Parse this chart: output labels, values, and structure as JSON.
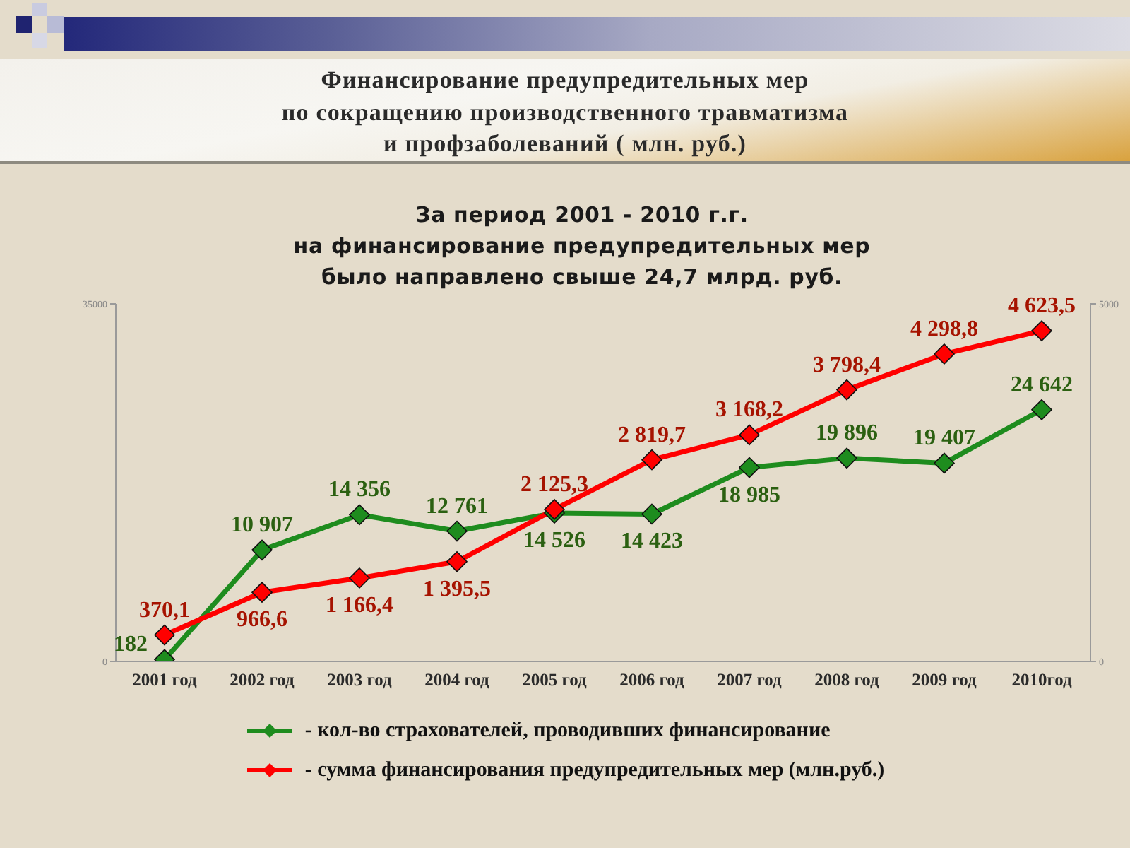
{
  "chart_data": {
    "type": "line",
    "title": "Финансирование предупредительных мер\nпо сокращению производственного травматизма\nи профзаболеваний ( млн. руб.)",
    "subtitle": "За период 2001 - 2010 г.г.\nна финансирование предупредительных мер\nбыло направлено свыше 24,7 млрд. руб.",
    "categories": [
      "2001 год",
      "2002 год",
      "2003 год",
      "2004 год",
      "2005 год",
      "2006 год",
      "2007 год",
      "2008 год",
      "2009 год",
      "2010год"
    ],
    "series": [
      {
        "name": "- кол-во страхователей, проводивших финансирование",
        "color": "#1e8c1e",
        "values": [
          182,
          10907,
          14356,
          12761,
          14526,
          14423,
          18985,
          19896,
          19407,
          24642
        ],
        "value_labels": [
          "182",
          "10 907",
          "14 356",
          "12 761",
          "14 526",
          "14 423",
          "18 985",
          "19 896",
          "19 407",
          "24 642"
        ]
      },
      {
        "name": "- сумма финансирования предупредительных мер (млн.руб.)",
        "color": "#ff0000",
        "axis": "y2",
        "values": [
          370.1,
          966.6,
          1166.4,
          1395.5,
          2125.3,
          2819.7,
          3168.2,
          3798.4,
          4298.8,
          4623.5
        ],
        "value_labels": [
          "370,1",
          "966,6",
          "1 166,4",
          "1 395,5",
          "2 125,3",
          "2 819,7",
          "3 168,2",
          "3 798,4",
          "4 298,8",
          "4 623,5"
        ]
      }
    ],
    "ylim": [
      0,
      35000
    ],
    "yticks": [
      0,
      35000
    ],
    "y2lim": [
      0,
      5000
    ],
    "y2ticks": [
      0,
      5000
    ],
    "legend": "bottom",
    "marker": "diamond",
    "line_style": "solid"
  }
}
